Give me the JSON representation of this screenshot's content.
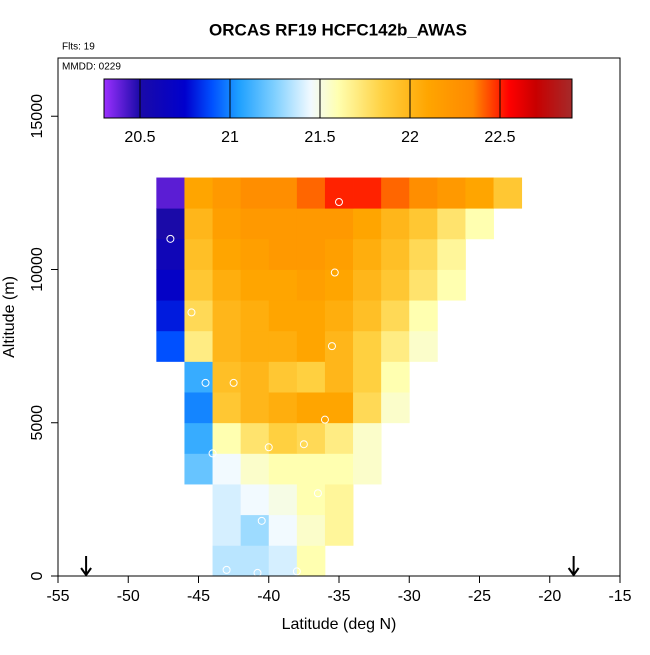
{
  "chart_data": {
    "type": "heatmap",
    "title": "ORCAS RF19 HCFC142b_AWAS",
    "flights_label": "Flts: 19",
    "date_label": "MMDD: 0229",
    "x_label": "Latitude (deg N)",
    "y_label": "Altitude (m)",
    "xlim": [
      -55,
      -15
    ],
    "xticks": [
      -55,
      -50,
      -45,
      -40,
      -35,
      -30,
      -25,
      -20,
      -15
    ],
    "ylim": [
      0,
      16900
    ],
    "yticks": [
      0,
      5000,
      10000,
      15000
    ],
    "x_edges": [
      -50,
      -48,
      -46,
      -44,
      -42,
      -40,
      -38,
      -36,
      -34,
      -32,
      -30,
      -28,
      -26,
      -24,
      -22
    ],
    "y_edges": [
      0,
      1000,
      2000,
      3000,
      4000,
      5000,
      6000,
      7000,
      8000,
      9000,
      10000,
      11000,
      12000,
      13000
    ],
    "z": [
      [
        null,
        null,
        null,
        21.35,
        21.35,
        21.4,
        21.6,
        null,
        null,
        null,
        null,
        null,
        null,
        null
      ],
      [
        null,
        null,
        null,
        21.4,
        21.3,
        21.45,
        21.55,
        21.65,
        null,
        null,
        null,
        null,
        null,
        null
      ],
      [
        null,
        null,
        null,
        21.4,
        21.45,
        21.5,
        21.6,
        21.65,
        null,
        null,
        null,
        null,
        null,
        null
      ],
      [
        null,
        null,
        21.2,
        21.45,
        21.55,
        21.6,
        21.6,
        21.6,
        21.55,
        null,
        null,
        null,
        null,
        null
      ],
      [
        null,
        null,
        21.1,
        21.6,
        21.75,
        21.85,
        21.8,
        21.7,
        21.55,
        null,
        null,
        null,
        null,
        null
      ],
      [
        null,
        null,
        21.0,
        21.9,
        22.0,
        22.05,
        22.1,
        22.1,
        21.8,
        21.55,
        null,
        null,
        null,
        null
      ],
      [
        null,
        null,
        21.1,
        21.95,
        22.0,
        21.9,
        21.85,
        22.0,
        21.85,
        21.6,
        null,
        null,
        null,
        null
      ],
      [
        null,
        20.9,
        21.7,
        22.0,
        22.05,
        22.05,
        22.1,
        22.0,
        21.85,
        21.7,
        21.55,
        null,
        null,
        null
      ],
      [
        null,
        20.8,
        21.8,
        22.0,
        22.05,
        22.1,
        22.1,
        22.05,
        21.95,
        21.8,
        21.6,
        null,
        null,
        null
      ],
      [
        null,
        20.7,
        21.9,
        22.05,
        22.1,
        22.1,
        22.15,
        22.1,
        22.0,
        21.9,
        21.75,
        21.6,
        null,
        null
      ],
      [
        null,
        20.6,
        21.95,
        22.1,
        22.15,
        22.2,
        22.2,
        22.15,
        22.05,
        21.95,
        21.8,
        21.65,
        null,
        null
      ],
      [
        null,
        20.5,
        22.0,
        22.15,
        22.2,
        22.2,
        22.2,
        22.2,
        22.1,
        22.0,
        21.9,
        21.75,
        21.6,
        null
      ],
      [
        null,
        20.4,
        22.1,
        22.2,
        22.3,
        22.3,
        22.4,
        22.5,
        22.5,
        22.4,
        22.3,
        22.2,
        22.1,
        21.9
      ]
    ],
    "points": {
      "x": [
        -47,
        -45.5,
        -44.5,
        -42.5,
        -44,
        -40,
        -37.5,
        -36,
        -35.5,
        -35.3,
        -35,
        -40.5,
        -43,
        -40.8,
        -38,
        -36.5
      ],
      "y": [
        11000,
        8600,
        6300,
        6300,
        4000,
        4200,
        4300,
        5100,
        7500,
        9900,
        12200,
        1800,
        200,
        100,
        150,
        2700
      ]
    },
    "arrows_x": [
      -53,
      -18.3
    ],
    "clim": [
      20.3,
      22.9
    ],
    "cticks": [
      20.5,
      21,
      21.5,
      22,
      22.5
    ],
    "colormap": [
      {
        "value": 20.3,
        "color": "#9b30ff"
      },
      {
        "value": 20.5,
        "color": "#1a0aa8"
      },
      {
        "value": 20.75,
        "color": "#0000cd"
      },
      {
        "value": 20.9,
        "color": "#0050ff"
      },
      {
        "value": 21.05,
        "color": "#1ea0ff"
      },
      {
        "value": 21.25,
        "color": "#80d0ff"
      },
      {
        "value": 21.45,
        "color": "#f2faff"
      },
      {
        "value": 21.6,
        "color": "#ffffb0"
      },
      {
        "value": 21.85,
        "color": "#ffd040"
      },
      {
        "value": 22.1,
        "color": "#ffa500"
      },
      {
        "value": 22.35,
        "color": "#ff8800"
      },
      {
        "value": 22.55,
        "color": "#ff0000"
      },
      {
        "value": 22.7,
        "color": "#c80000"
      },
      {
        "value": 22.9,
        "color": "#a52a2a"
      }
    ]
  }
}
